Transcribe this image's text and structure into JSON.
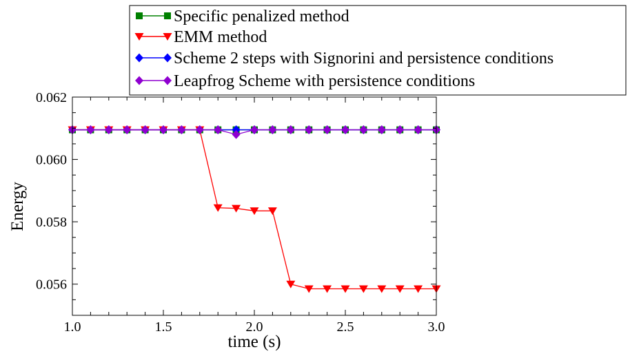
{
  "chart_data": {
    "type": "line",
    "title": "",
    "xlabel": "time (s)",
    "ylabel": "Energy",
    "xlim": [
      1.0,
      3.0
    ],
    "ylim": [
      0.055,
      0.062
    ],
    "xticks": [
      "1.0",
      "1.5",
      "2.0",
      "2.5",
      "3.0"
    ],
    "yticks": [
      "0.056",
      "0.058",
      "0.060",
      "0.062"
    ],
    "grid": false,
    "legend_position": "top, above plot",
    "x": [
      1.0,
      1.1,
      1.2,
      1.3,
      1.4,
      1.5,
      1.6,
      1.7,
      1.8,
      1.9,
      2.0,
      2.1,
      2.2,
      2.3,
      2.4,
      2.5,
      2.6,
      2.7,
      2.8,
      2.9,
      3.0
    ],
    "series": [
      {
        "name": "Specific penalized method",
        "color": "#008000",
        "marker": "square",
        "values": [
          0.06095,
          0.06095,
          0.06095,
          0.06095,
          0.06095,
          0.06095,
          0.06095,
          0.06095,
          0.06095,
          0.06095,
          0.06095,
          0.06095,
          0.06095,
          0.06095,
          0.06095,
          0.06095,
          0.06095,
          0.06095,
          0.06095,
          0.06095,
          0.06095
        ]
      },
      {
        "name": "EMM method",
        "color": "#ff0000",
        "marker": "triangle-down",
        "values": [
          0.06095,
          0.06095,
          0.06095,
          0.06095,
          0.06095,
          0.06095,
          0.06095,
          0.06095,
          0.05845,
          0.05843,
          0.05835,
          0.05835,
          0.056,
          0.05585,
          0.05585,
          0.05585,
          0.05585,
          0.05585,
          0.05585,
          0.05585,
          0.05585
        ]
      },
      {
        "name": "Scheme 2 steps with Signorini and persistence conditions",
        "color": "#0000ff",
        "marker": "diamond",
        "values": [
          0.06095,
          0.06095,
          0.06095,
          0.06095,
          0.06095,
          0.06095,
          0.06095,
          0.06095,
          0.06095,
          0.06095,
          0.06095,
          0.06095,
          0.06095,
          0.06095,
          0.06095,
          0.06095,
          0.06095,
          0.06095,
          0.06095,
          0.06095,
          0.06095
        ]
      },
      {
        "name": "Leapfrog Scheme with persistence conditions",
        "color": "#8f00d0",
        "marker": "diamond",
        "values": [
          0.06095,
          0.06095,
          0.06095,
          0.06095,
          0.06095,
          0.06095,
          0.06095,
          0.06095,
          0.06095,
          0.0608,
          0.06095,
          0.06095,
          0.06095,
          0.06095,
          0.06095,
          0.06095,
          0.06095,
          0.06095,
          0.06095,
          0.06095,
          0.06095
        ]
      }
    ]
  }
}
